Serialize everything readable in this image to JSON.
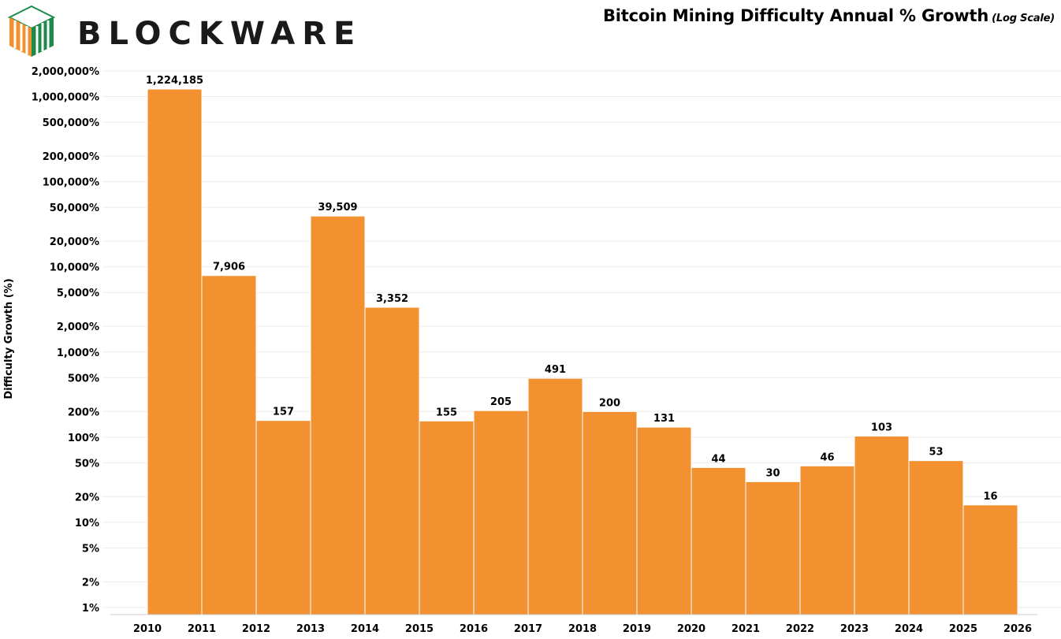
{
  "brand": {
    "name": "BLOCKWARE",
    "logo_icon": "blockware-cube-icon",
    "colors": {
      "orange": "#F39130",
      "green": "#1E8A4A",
      "dark": "#1a1a1a"
    }
  },
  "chart_data": {
    "type": "bar",
    "title": "Bitcoin Mining Difficulty Annual % Growth",
    "subtitle": "(Log Scale)",
    "xlabel": "",
    "ylabel": "Difficulty Growth (%)",
    "yscale": "log",
    "ylim": [
      0.7,
      2000000
    ],
    "bar_color": "#F39130",
    "grid": true,
    "x_tick_labels": [
      "2010",
      "2011",
      "2012",
      "2013",
      "2014",
      "2015",
      "2016",
      "2017",
      "2018",
      "2019",
      "2020",
      "2021",
      "2022",
      "2023",
      "2024",
      "2025",
      "2026"
    ],
    "y_ticks": [
      {
        "value": 1,
        "label": "1%"
      },
      {
        "value": 2,
        "label": "2%"
      },
      {
        "value": 5,
        "label": "5%"
      },
      {
        "value": 10,
        "label": "10%"
      },
      {
        "value": 20,
        "label": "20%"
      },
      {
        "value": 50,
        "label": "50%"
      },
      {
        "value": 100,
        "label": "100%"
      },
      {
        "value": 200,
        "label": "200%"
      },
      {
        "value": 500,
        "label": "500%"
      },
      {
        "value": 1000,
        "label": "1,000%"
      },
      {
        "value": 2000,
        "label": "2,000%"
      },
      {
        "value": 5000,
        "label": "5,000%"
      },
      {
        "value": 10000,
        "label": "10,000%"
      },
      {
        "value": 20000,
        "label": "20,000%"
      },
      {
        "value": 50000,
        "label": "50,000%"
      },
      {
        "value": 100000,
        "label": "100,000%"
      },
      {
        "value": 200000,
        "label": "200,000%"
      },
      {
        "value": 500000,
        "label": "500,000%"
      },
      {
        "value": 1000000,
        "label": "1,000,000%"
      },
      {
        "value": 2000000,
        "label": "2,000,000%"
      }
    ],
    "bars": [
      {
        "start": "2010",
        "value": 1224185,
        "label": "1,224,185"
      },
      {
        "start": "2011",
        "value": 7906,
        "label": "7,906"
      },
      {
        "start": "2012",
        "value": 157,
        "label": "157"
      },
      {
        "start": "2013",
        "value": 39509,
        "label": "39,509"
      },
      {
        "start": "2014",
        "value": 3352,
        "label": "3,352"
      },
      {
        "start": "2015",
        "value": 155,
        "label": "155"
      },
      {
        "start": "2016",
        "value": 205,
        "label": "205"
      },
      {
        "start": "2017",
        "value": 491,
        "label": "491"
      },
      {
        "start": "2018",
        "value": 200,
        "label": "200"
      },
      {
        "start": "2019",
        "value": 131,
        "label": "131"
      },
      {
        "start": "2020",
        "value": 44,
        "label": "44"
      },
      {
        "start": "2021",
        "value": 30,
        "label": "30"
      },
      {
        "start": "2022",
        "value": 46,
        "label": "46"
      },
      {
        "start": "2023",
        "value": 103,
        "label": "103"
      },
      {
        "start": "2024",
        "value": 53,
        "label": "53"
      },
      {
        "start": "2025",
        "value": 16,
        "label": "16"
      }
    ]
  }
}
